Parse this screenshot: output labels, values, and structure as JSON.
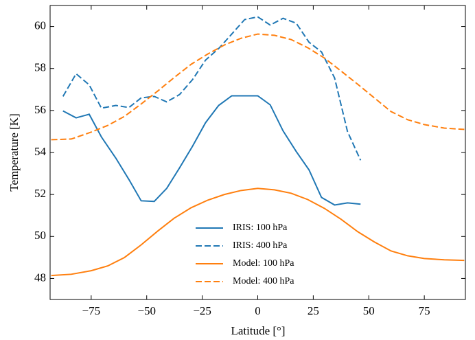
{
  "chart_data": {
    "type": "line",
    "xlabel": "Latitude [°]",
    "ylabel": "Temperature [K]",
    "xlim": [
      -93.5,
      93.5
    ],
    "ylim": [
      47,
      61
    ],
    "xticks": [
      {
        "value": -75,
        "label": "−75"
      },
      {
        "value": -50,
        "label": "−50"
      },
      {
        "value": -25,
        "label": "−25"
      },
      0,
      25,
      50,
      75
    ],
    "yticks": [
      48,
      50,
      52,
      54,
      56,
      58,
      60
    ],
    "legend": "lower center",
    "series": [
      {
        "name": "IRIS: 100 hPa",
        "color": "#1f77b4",
        "dash": "solid",
        "x": [
          -87.7,
          -81.8,
          -75.9,
          -70.4,
          -63.9,
          -58.0,
          -52.5,
          -46.6,
          -41.0,
          -35.2,
          -29.3,
          -23.5,
          -17.6,
          -11.7,
          -5.9,
          0,
          5.6,
          11.4,
          17.3,
          23.1,
          28.7,
          34.6,
          40.4,
          46.3
        ],
        "values": [
          55.98,
          55.65,
          55.82,
          54.74,
          53.73,
          52.71,
          51.7,
          51.67,
          52.29,
          53.27,
          54.31,
          55.42,
          56.24,
          56.7,
          56.7,
          56.7,
          56.27,
          55.03,
          54.05,
          53.17,
          51.86,
          51.5,
          51.6,
          51.54
        ]
      },
      {
        "name": "IRIS: 400 hPa",
        "color": "#1f77b4",
        "dash": "dashed",
        "x": [
          -87.7,
          -81.8,
          -75.9,
          -70.4,
          -63.9,
          -58.0,
          -52.5,
          -46.6,
          -41.0,
          -35.2,
          -29.3,
          -23.5,
          -17.6,
          -11.7,
          -5.9,
          0,
          5.6,
          11.4,
          17.3,
          23.1,
          28.7,
          34.6,
          40.4,
          46.3
        ],
        "values": [
          56.67,
          57.75,
          57.22,
          56.11,
          56.24,
          56.14,
          56.6,
          56.67,
          56.41,
          56.76,
          57.48,
          58.4,
          58.95,
          59.64,
          60.33,
          60.46,
          60.07,
          60.39,
          60.16,
          59.25,
          58.79,
          57.55,
          55.0,
          53.63
        ]
      },
      {
        "name": "Model: 100 hPa",
        "color": "#ff7f0e",
        "dash": "solid",
        "x": [
          -93,
          -84,
          -75,
          -67.5,
          -60,
          -52.5,
          -45,
          -37.5,
          -30,
          -22.5,
          -15,
          -7.5,
          0,
          7.5,
          15,
          22.5,
          30,
          37.5,
          45,
          52.5,
          60,
          67.5,
          75,
          84,
          93
        ],
        "values": [
          48.14,
          48.2,
          48.37,
          48.6,
          49.0,
          49.6,
          50.26,
          50.88,
          51.37,
          51.73,
          52.0,
          52.19,
          52.29,
          52.22,
          52.06,
          51.76,
          51.34,
          50.82,
          50.23,
          49.74,
          49.31,
          49.08,
          48.95,
          48.89,
          48.86
        ]
      },
      {
        "name": "Model: 400 hPa",
        "color": "#ff7f0e",
        "dash": "dashed",
        "x": [
          -93,
          -84,
          -75,
          -67.5,
          -60,
          -52.5,
          -45,
          -37.5,
          -30,
          -22.5,
          -15,
          -7.5,
          0,
          7.5,
          15,
          22.5,
          30,
          37.5,
          45,
          52.5,
          60,
          67.5,
          75,
          84,
          93
        ],
        "values": [
          54.61,
          54.64,
          54.97,
          55.29,
          55.72,
          56.31,
          56.93,
          57.58,
          58.2,
          58.69,
          59.12,
          59.44,
          59.64,
          59.58,
          59.38,
          58.99,
          58.5,
          57.88,
          57.25,
          56.6,
          55.95,
          55.56,
          55.33,
          55.16,
          55.1
        ]
      }
    ]
  }
}
